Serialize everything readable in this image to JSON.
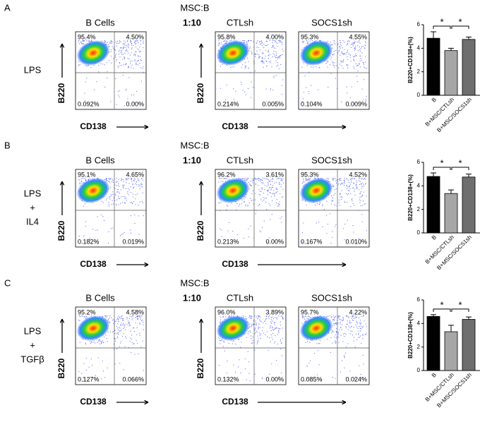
{
  "panels": [
    {
      "letter": "A",
      "ratio_title": "MSC:B",
      "condition": [
        "LPS"
      ],
      "plot_titles": [
        "B Cells",
        "1:10",
        "CTLsh",
        "SOCS1sh"
      ],
      "y_axis": "B220",
      "x_axis": "CD138",
      "plots": [
        [
          "95.4%",
          "4.50%",
          "0.092%",
          "0.00%"
        ],
        [
          "95.8%",
          "4.00%",
          "0.214%",
          "0.005%"
        ],
        [
          "95.3%",
          "4.55%",
          "0.104%",
          "0.009%"
        ]
      ]
    },
    {
      "letter": "B",
      "ratio_title": "MSC:B",
      "condition": [
        "LPS",
        "+",
        "IL4"
      ],
      "plot_titles": [
        "B Cells",
        "1:10",
        "CTLsh",
        "SOCS1sh"
      ],
      "y_axis": "B220",
      "x_axis": "CD138",
      "plots": [
        [
          "95.1%",
          "4.65%",
          "0.182%",
          "0.019%"
        ],
        [
          "96.2%",
          "3.61%",
          "0.213%",
          "0.00%"
        ],
        [
          "95.3%",
          "4.52%",
          "0.167%",
          "0.010%"
        ]
      ]
    },
    {
      "letter": "C",
      "ratio_title": "MSC:B",
      "condition": [
        "LPS",
        "+",
        "TGFβ"
      ],
      "plot_titles": [
        "B Cells",
        "1:10",
        "CTLsh",
        "SOCS1sh"
      ],
      "y_axis": "B220",
      "x_axis": "CD138",
      "plots": [
        [
          "95.2%",
          "4.58%",
          "0.127%",
          "0.066%"
        ],
        [
          "96.0%",
          "3.89%",
          "0.132%",
          "0.00%"
        ],
        [
          "95.7%",
          "4.22%",
          "0.085%",
          "0.024%"
        ]
      ]
    }
  ],
  "chart_data": [
    {
      "type": "bar",
      "ylabel": "B220+CD138+(%)",
      "categories": [
        "B",
        "B+MSC/CTLsh",
        "B+MSC/SOCS1sh"
      ],
      "values": [
        4.85,
        3.8,
        4.75
      ],
      "errors": [
        0.55,
        0.2,
        0.2
      ],
      "colors": [
        "#000000",
        "#a6a6a6",
        "#6e6e6e"
      ],
      "ylim": [
        0,
        6
      ],
      "yticks": [
        0,
        2,
        4,
        6
      ],
      "significance": [
        "*",
        "*"
      ]
    },
    {
      "type": "bar",
      "ylabel": "B220+CD138+(%)",
      "categories": [
        "B",
        "B+MSC/CTLsh",
        "B+MSC/SOCS1sh"
      ],
      "values": [
        4.8,
        3.35,
        4.75
      ],
      "errors": [
        0.3,
        0.3,
        0.25
      ],
      "colors": [
        "#000000",
        "#a6a6a6",
        "#6e6e6e"
      ],
      "ylim": [
        0,
        6
      ],
      "yticks": [
        0,
        2,
        4,
        6
      ],
      "significance": [
        "*",
        "*"
      ]
    },
    {
      "type": "bar",
      "ylabel": "B220+CD138+(%)",
      "categories": [
        "B",
        "B+MSC/CTLsh",
        "B+MSC/SOCS1sh"
      ],
      "values": [
        4.6,
        3.3,
        4.35
      ],
      "errors": [
        0.15,
        0.55,
        0.2
      ],
      "colors": [
        "#000000",
        "#a6a6a6",
        "#6e6e6e"
      ],
      "ylim": [
        0,
        6
      ],
      "yticks": [
        0,
        2,
        4,
        6
      ],
      "significance": [
        "*",
        "*"
      ]
    }
  ]
}
